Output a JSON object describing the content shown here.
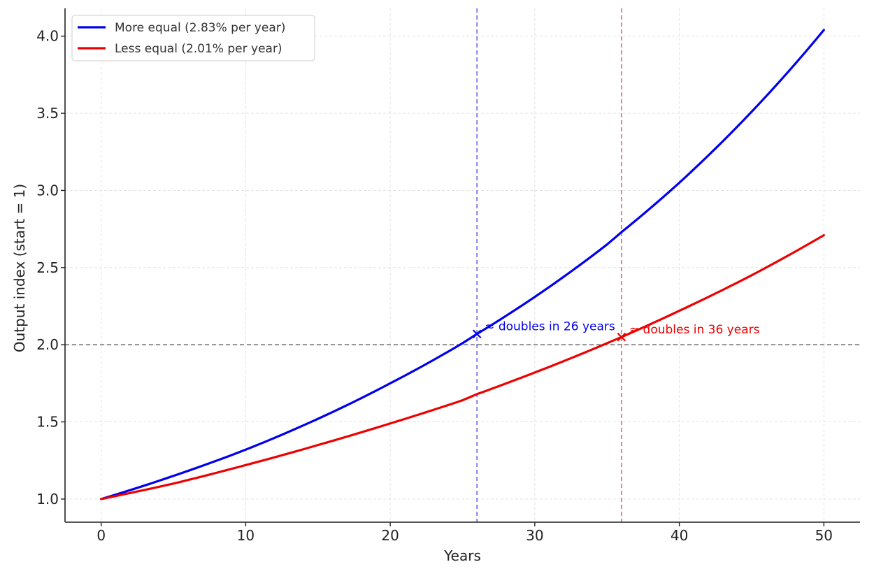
{
  "chart_data": {
    "type": "line",
    "xlabel": "Years",
    "ylabel": "Output index (start = 1)",
    "xlim": [
      -2.5,
      52.5
    ],
    "ylim": [
      0.85,
      4.18
    ],
    "xticks": [
      0,
      10,
      20,
      30,
      40,
      50
    ],
    "xtick_labels": [
      "0",
      "10",
      "20",
      "30",
      "40",
      "50"
    ],
    "yticks": [
      1.0,
      1.5,
      2.0,
      2.5,
      3.0,
      3.5,
      4.0
    ],
    "ytick_labels": [
      "1.0",
      "1.5",
      "2.0",
      "2.5",
      "3.0",
      "3.5",
      "4.0"
    ],
    "grid": true,
    "legend_position": "top-left",
    "x": [
      0,
      5,
      10,
      15,
      20,
      25,
      26,
      30,
      35,
      36,
      40,
      45,
      50
    ],
    "series": [
      {
        "name": "More equal (2.83% per year)",
        "color": "#0000ee",
        "values": [
          1.0,
          1.15,
          1.32,
          1.52,
          1.75,
          2.01,
          2.07,
          2.31,
          2.65,
          2.73,
          3.05,
          3.51,
          4.04
        ]
      },
      {
        "name": "Less equal (2.01% per year)",
        "color": "#ee0000",
        "values": [
          1.0,
          1.1,
          1.22,
          1.35,
          1.49,
          1.64,
          1.68,
          1.82,
          2.01,
          2.05,
          2.22,
          2.45,
          2.71
        ]
      }
    ],
    "reference_lines": {
      "horizontal": {
        "y": 2.0,
        "color": "#777777"
      },
      "vertical": [
        {
          "x": 26,
          "color": "#6666ee"
        },
        {
          "x": 36,
          "color": "#ee6666"
        }
      ]
    },
    "markers": [
      {
        "x": 26,
        "y": 2.07,
        "color": "#0000ee",
        "symbol": "x",
        "label": "≈ doubles in 26 years"
      },
      {
        "x": 36,
        "y": 2.05,
        "color": "#ee0000",
        "symbol": "x",
        "label": "≈ doubles in 36 years"
      }
    ]
  }
}
